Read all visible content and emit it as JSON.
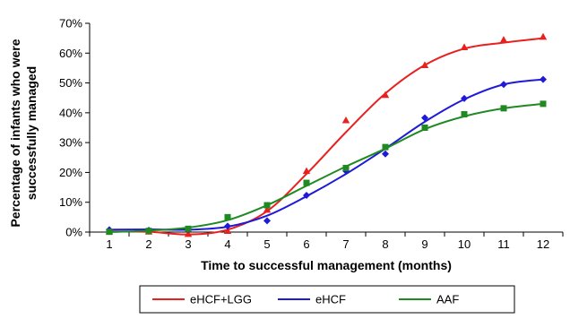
{
  "chart_data": {
    "type": "line",
    "xlabel": "Time to successful management (months)",
    "ylabel_lines": [
      "Percentage of infants who were",
      "successfully managed"
    ],
    "x": [
      1,
      2,
      3,
      4,
      5,
      6,
      7,
      8,
      9,
      10,
      11,
      12
    ],
    "x_ticks": [
      "1",
      "2",
      "3",
      "4",
      "5",
      "6",
      "7",
      "8",
      "9",
      "10",
      "11",
      "12"
    ],
    "xlim": [
      0.5,
      12.5
    ],
    "ylim": [
      0,
      70
    ],
    "y_ticks": [
      "0%",
      "10%",
      "20%",
      "30%",
      "40%",
      "50%",
      "60%",
      "70%"
    ],
    "grid": false,
    "legend_position": "bottom",
    "series": [
      {
        "name": "eHCF+LGG",
        "color": "#e8201e",
        "marker": "triangle",
        "values": [
          0.3,
          0.2,
          -0.6,
          0.4,
          7.5,
          20.5,
          37.5,
          46,
          56,
          62,
          64.5,
          65.5
        ],
        "fit": [
          0.2,
          0.1,
          -0.8,
          0.8,
          7,
          19.5,
          33.5,
          46.5,
          56,
          61.5,
          63.5,
          65
        ]
      },
      {
        "name": "eHCF",
        "color": "#1f1ad8",
        "marker": "diamond",
        "values": [
          0.8,
          0.6,
          0.9,
          2,
          3.8,
          12.3,
          20.5,
          26.2,
          38.3,
          44.8,
          49.5,
          51.2
        ],
        "fit": [
          0.8,
          0.9,
          0.8,
          1.8,
          5.5,
          12,
          19.5,
          28,
          37,
          44.5,
          49.5,
          51.2
        ]
      },
      {
        "name": "AAF",
        "color": "#1f8a22",
        "marker": "square",
        "values": [
          0.1,
          0.4,
          1.1,
          5,
          9,
          16.5,
          21.5,
          28.5,
          35,
          39.5,
          41.5,
          43
        ],
        "fit": [
          0,
          0.5,
          1.5,
          4,
          9,
          15.5,
          22,
          28,
          34.5,
          38.8,
          41.5,
          43
        ]
      }
    ]
  }
}
